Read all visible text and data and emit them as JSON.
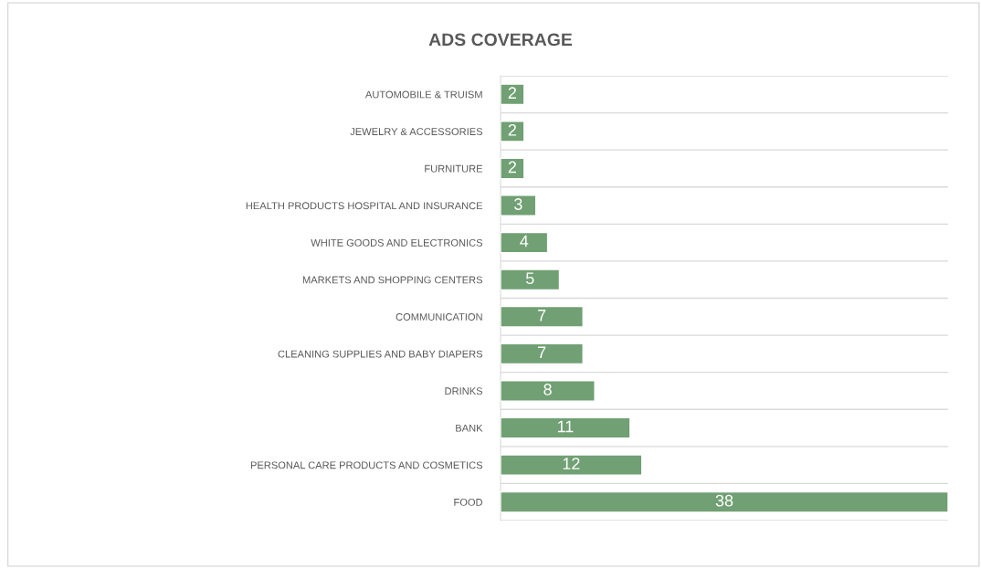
{
  "chart_data": {
    "type": "bar",
    "title": "ADS COVERAGE",
    "orientation": "horizontal",
    "categories": [
      "AUTOMOBILE & TRUISM",
      "JEWELRY & ACCESSORIES",
      "FURNITURE",
      "HEALTH PRODUCTS HOSPITAL AND INSURANCE",
      "WHITE GOODS AND ELECTRONICS",
      "MARKETS AND SHOPPING CENTERS",
      "COMMUNICATION",
      "CLEANING SUPPLIES AND BABY DIAPERS",
      "DRINKS",
      "BANK",
      "PERSONAL CARE PRODUCTS AND COSMETICS",
      "FOOD"
    ],
    "values": [
      2,
      2,
      2,
      3,
      4,
      5,
      7,
      7,
      8,
      11,
      12,
      38
    ],
    "color": "#70a073",
    "data_labels": true,
    "grid": "y",
    "legend": false,
    "tick_labels": "y"
  }
}
